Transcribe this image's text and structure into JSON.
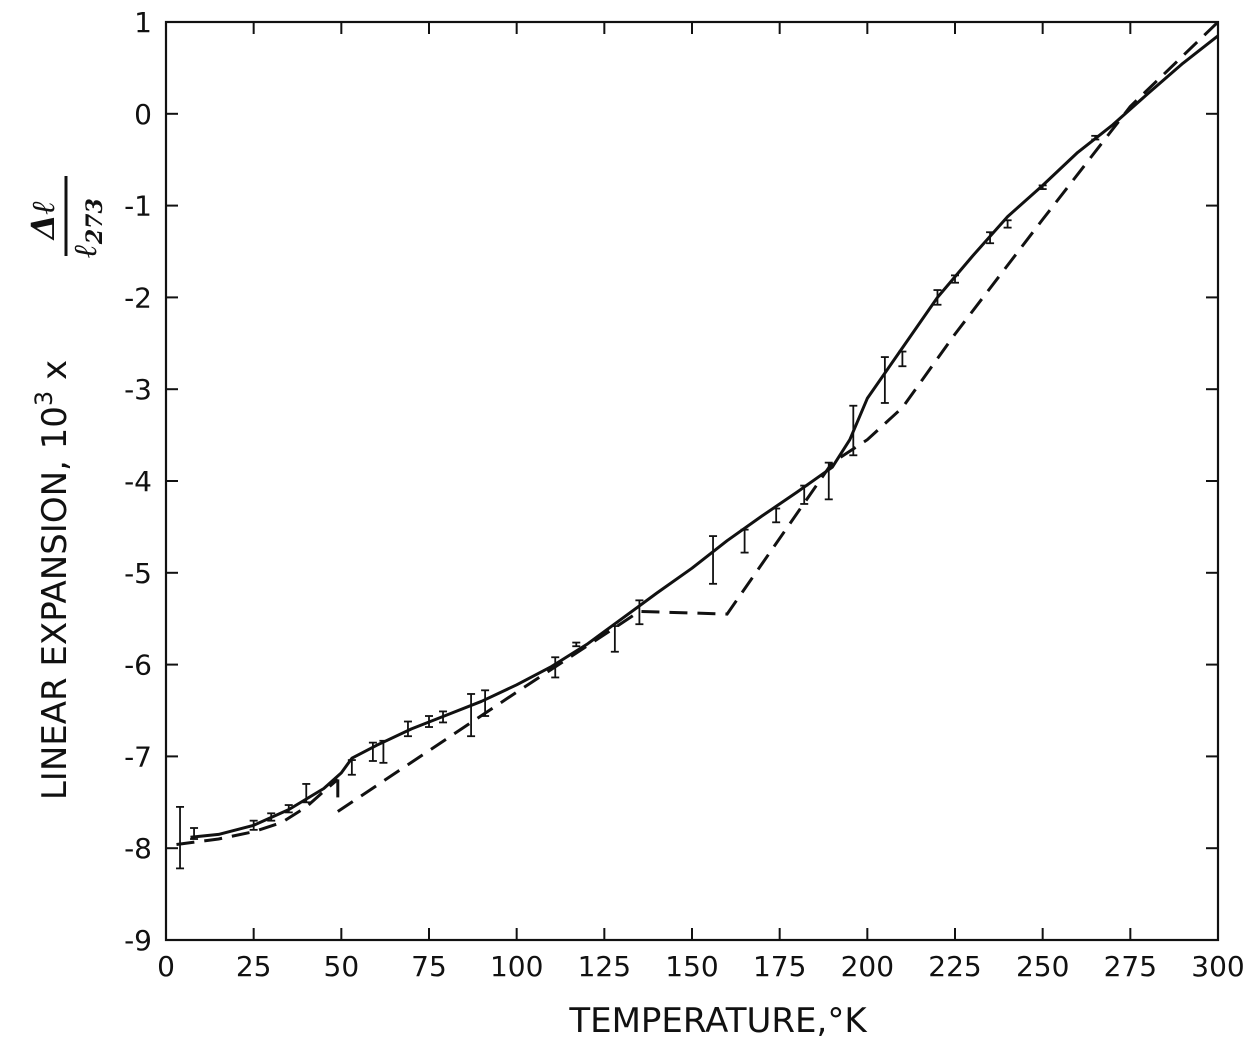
{
  "chart_data": {
    "type": "line",
    "title": "",
    "xlabel": "TEMPERATURE,°K",
    "ylabel": {
      "prefix": "LINEAR EXPANSION, 10",
      "exponent": "3",
      "times": " x ",
      "numerator": "Δℓ",
      "denominator": "ℓ",
      "denominator_subscript": "273"
    },
    "xlim": [
      0,
      300
    ],
    "ylim": [
      -9,
      1
    ],
    "x_ticks": [
      "0",
      "25",
      "50",
      "75",
      "100",
      "125",
      "150",
      "175",
      "200",
      "225",
      "250",
      "275",
      "300"
    ],
    "y_ticks": [
      "1",
      "0",
      "-1",
      "-2",
      "-3",
      "-4",
      "-5",
      "-6",
      "-7",
      "-8",
      "-9"
    ],
    "grid": false,
    "legend": "none",
    "series": [
      {
        "style": "solid",
        "x": [
          7,
          15,
          25,
          35,
          45,
          50,
          53,
          60,
          70,
          80,
          90,
          100,
          110,
          120,
          130,
          140,
          150,
          160,
          170,
          180,
          190,
          195,
          200,
          210,
          220,
          230,
          240,
          250,
          260,
          270,
          280,
          290,
          300
        ],
        "y": [
          -7.88,
          -7.85,
          -7.75,
          -7.58,
          -7.35,
          -7.18,
          -7.02,
          -6.88,
          -6.7,
          -6.55,
          -6.4,
          -6.22,
          -6.02,
          -5.78,
          -5.5,
          -5.22,
          -4.95,
          -4.65,
          -4.38,
          -4.12,
          -3.85,
          -3.55,
          -3.1,
          -2.55,
          -2.0,
          -1.55,
          -1.12,
          -0.78,
          -0.42,
          -0.12,
          0.22,
          0.55,
          0.85
        ]
      },
      {
        "style": "dashed",
        "segments": [
          {
            "x": [
              3,
              15,
              25,
              33,
              40,
              45,
              49
            ],
            "y": [
              -7.96,
              -7.9,
              -7.82,
              -7.72,
              -7.55,
              -7.38,
              -7.25
            ]
          },
          {
            "x": [
              49,
              49
            ],
            "y": [
              -7.25,
              -7.45
            ]
          },
          {
            "x": [
              49,
              100,
              120,
              135,
              160,
              190,
              200,
              210,
              225,
              250,
              275,
              300
            ],
            "y": [
              -7.6,
              -6.3,
              -5.8,
              -5.42,
              -5.45,
              -3.8,
              -3.55,
              -3.2,
              -2.4,
              -1.15,
              0.08,
              1.0
            ]
          }
        ]
      }
    ],
    "error_bars": [
      {
        "x": 4,
        "y": -7.88,
        "low": -8.22,
        "high": -7.55
      },
      {
        "x": 8,
        "y": -7.84,
        "low": -7.9,
        "high": -7.78
      },
      {
        "x": 25,
        "y": -7.75,
        "low": -7.8,
        "high": -7.7
      },
      {
        "x": 30,
        "y": -7.66,
        "low": -7.7,
        "high": -7.62
      },
      {
        "x": 35,
        "y": -7.57,
        "low": -7.61,
        "high": -7.53
      },
      {
        "x": 40,
        "y": -7.4,
        "low": -7.5,
        "high": -7.3
      },
      {
        "x": 53,
        "y": -7.12,
        "low": -7.2,
        "high": -7.04
      },
      {
        "x": 59,
        "y": -6.95,
        "low": -7.05,
        "high": -6.85
      },
      {
        "x": 62,
        "y": -6.95,
        "low": -7.07,
        "high": -6.83
      },
      {
        "x": 69,
        "y": -6.7,
        "low": -6.78,
        "high": -6.62
      },
      {
        "x": 75,
        "y": -6.62,
        "low": -6.68,
        "high": -6.56
      },
      {
        "x": 79,
        "y": -6.57,
        "low": -6.63,
        "high": -6.51
      },
      {
        "x": 87,
        "y": -6.55,
        "low": -6.78,
        "high": -6.32
      },
      {
        "x": 91,
        "y": -6.42,
        "low": -6.56,
        "high": -6.28
      },
      {
        "x": 111,
        "y": -6.03,
        "low": -6.14,
        "high": -5.92
      },
      {
        "x": 117,
        "y": -5.78,
        "low": -5.8,
        "high": -5.76
      },
      {
        "x": 128,
        "y": -5.72,
        "low": -5.86,
        "high": -5.58
      },
      {
        "x": 135,
        "y": -5.43,
        "low": -5.56,
        "high": -5.3
      },
      {
        "x": 156,
        "y": -4.87,
        "low": -5.12,
        "high": -4.6
      },
      {
        "x": 165,
        "y": -4.65,
        "low": -4.78,
        "high": -4.53
      },
      {
        "x": 174,
        "y": -4.38,
        "low": -4.45,
        "high": -4.3
      },
      {
        "x": 182,
        "y": -4.15,
        "low": -4.25,
        "high": -4.05
      },
      {
        "x": 189,
        "y": -3.99,
        "low": -4.2,
        "high": -3.8
      },
      {
        "x": 196,
        "y": -3.45,
        "low": -3.72,
        "high": -3.18
      },
      {
        "x": 205,
        "y": -2.9,
        "low": -3.15,
        "high": -2.65
      },
      {
        "x": 210,
        "y": -2.67,
        "low": -2.75,
        "high": -2.59
      },
      {
        "x": 220,
        "y": -2.0,
        "low": -2.08,
        "high": -1.92
      },
      {
        "x": 225,
        "y": -1.8,
        "low": -1.84,
        "high": -1.76
      },
      {
        "x": 235,
        "y": -1.35,
        "low": -1.41,
        "high": -1.29
      },
      {
        "x": 240,
        "y": -1.2,
        "low": -1.24,
        "high": -1.16
      },
      {
        "x": 250,
        "y": -0.8,
        "low": -0.82,
        "high": -0.78
      },
      {
        "x": 265,
        "y": -0.26,
        "low": -0.28,
        "high": -0.24
      }
    ]
  }
}
